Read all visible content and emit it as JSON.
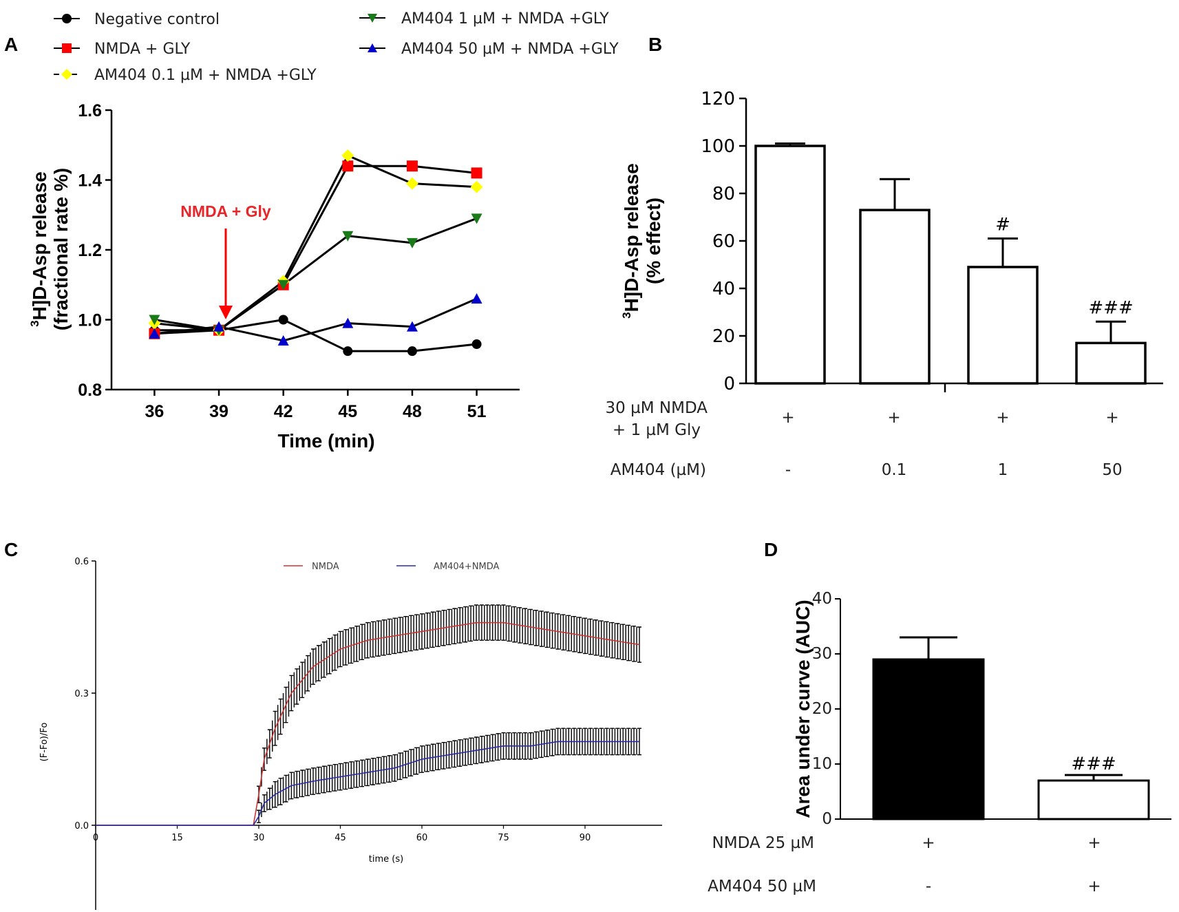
{
  "panels": {
    "a": "A",
    "b": "B",
    "c": "C",
    "d": "D"
  },
  "colors": {
    "black": "#000000",
    "red": "#ff0000",
    "yellow": "#ffff00",
    "green": "#1a7a1a",
    "blue": "#0000cc",
    "nmda_trace": "#cc3333",
    "am404_trace": "#2a2aa8"
  },
  "chart_data": [
    {
      "id": "A",
      "type": "line",
      "legend": {
        "col1": [
          "Negative control",
          "NMDA + GLY",
          "AM404 0.1 µM + NMDA +GLY"
        ],
        "col2": [
          "AM404 1 µM + NMDA +GLY",
          "AM404 50 µM + NMDA +GLY"
        ]
      },
      "x": [
        36,
        39,
        42,
        45,
        48,
        51
      ],
      "x_ticks": [
        "36",
        "39",
        "42",
        "45",
        "48",
        "51"
      ],
      "xlim": [
        34,
        53
      ],
      "ylim": [
        0.8,
        1.6
      ],
      "y_ticks": [
        "0.8",
        "1.0",
        "1.2",
        "1.4",
        "1.6"
      ],
      "xlabel": "Time (min)",
      "ylabel_sup": "3",
      "ylabel_main": "H]D-Asp release",
      "ylabel_line2": "(fractional rate %)",
      "annotation": "NMDA + Gly",
      "series": [
        {
          "name": "Negative control",
          "marker": "circle",
          "color": "#000000",
          "values": [
            0.97,
            0.97,
            1.0,
            0.91,
            0.91,
            0.93
          ]
        },
        {
          "name": "NMDA + GLY",
          "marker": "square",
          "color": "#ff0000",
          "values": [
            0.96,
            0.97,
            1.1,
            1.44,
            1.44,
            1.42
          ]
        },
        {
          "name": "AM404 0.1 µM + NMDA +GLY",
          "marker": "diamond",
          "color": "#ffff00",
          "values": [
            0.99,
            0.97,
            1.11,
            1.47,
            1.39,
            1.38
          ]
        },
        {
          "name": "AM404 1 µM + NMDA +GLY",
          "marker": "triangle-down",
          "color": "#1a7a1a",
          "values": [
            1.0,
            0.97,
            1.1,
            1.24,
            1.22,
            1.29
          ]
        },
        {
          "name": "AM404 50 µM + NMDA +GLY",
          "marker": "triangle-up",
          "color": "#0000cc",
          "values": [
            0.96,
            0.98,
            0.94,
            0.99,
            0.98,
            1.06
          ]
        }
      ]
    },
    {
      "id": "B",
      "type": "bar",
      "ylim": [
        0,
        120
      ],
      "y_ticks": [
        "0",
        "20",
        "40",
        "60",
        "80",
        "100",
        "120"
      ],
      "ylabel_sup": "3",
      "ylabel_main": "H]D-Asp release",
      "ylabel_line2": "(% effect)",
      "values": [
        100,
        73,
        49,
        17
      ],
      "errors": [
        1,
        13,
        12,
        9
      ],
      "annotations": [
        "",
        "",
        "#",
        "###"
      ],
      "conditions": [
        {
          "label1": "30 µM NMDA",
          "label2": "+ 1 µM  Gly",
          "values": [
            "+",
            "+",
            "+",
            "+"
          ]
        },
        {
          "label1": "AM404 (µM)",
          "label2": "",
          "values": [
            "-",
            "0.1",
            "1",
            "50"
          ]
        }
      ]
    },
    {
      "id": "C",
      "type": "line",
      "xlim": [
        0,
        105
      ],
      "ylim": [
        -0.2,
        0.6
      ],
      "x_ticks": [
        "0",
        "15",
        "30",
        "45",
        "60",
        "75",
        "90"
      ],
      "y_ticks": [
        "0.0",
        "0.3",
        "0.6"
      ],
      "xlabel": "time (s)",
      "ylabel": "(F-Fo)/Fo",
      "x": [
        0,
        10,
        20,
        27,
        29,
        30,
        31,
        33,
        36,
        40,
        45,
        50,
        55,
        60,
        65,
        70,
        75,
        80,
        85,
        90,
        95,
        100
      ],
      "series": [
        {
          "name": "NMDA",
          "color": "#cc3333",
          "err": 0.04,
          "values": [
            0.0,
            0.0,
            0.0,
            0.0,
            0.0,
            0.07,
            0.15,
            0.22,
            0.3,
            0.36,
            0.4,
            0.42,
            0.43,
            0.44,
            0.45,
            0.46,
            0.46,
            0.45,
            0.44,
            0.43,
            0.42,
            0.41
          ]
        },
        {
          "name": "AM404+NMDA",
          "color": "#2a2aa8",
          "err": 0.03,
          "values": [
            0.0,
            0.0,
            0.0,
            0.0,
            0.0,
            0.02,
            0.05,
            0.07,
            0.09,
            0.1,
            0.11,
            0.12,
            0.13,
            0.15,
            0.16,
            0.17,
            0.18,
            0.18,
            0.19,
            0.19,
            0.19,
            0.19
          ]
        }
      ]
    },
    {
      "id": "D",
      "type": "bar",
      "ylim": [
        0,
        40
      ],
      "y_ticks": [
        "0",
        "10",
        "20",
        "30",
        "40"
      ],
      "ylabel": "Area under curve (AUC)",
      "values": [
        29,
        7
      ],
      "errors": [
        4,
        1
      ],
      "fills": [
        "#000000",
        "#ffffff"
      ],
      "annotations": [
        "",
        "###"
      ],
      "conditions": [
        {
          "label": "NMDA 25 µM",
          "values": [
            "+",
            "+"
          ]
        },
        {
          "label": "AM404 50 µM",
          "values": [
            "-",
            "+"
          ]
        }
      ]
    }
  ]
}
